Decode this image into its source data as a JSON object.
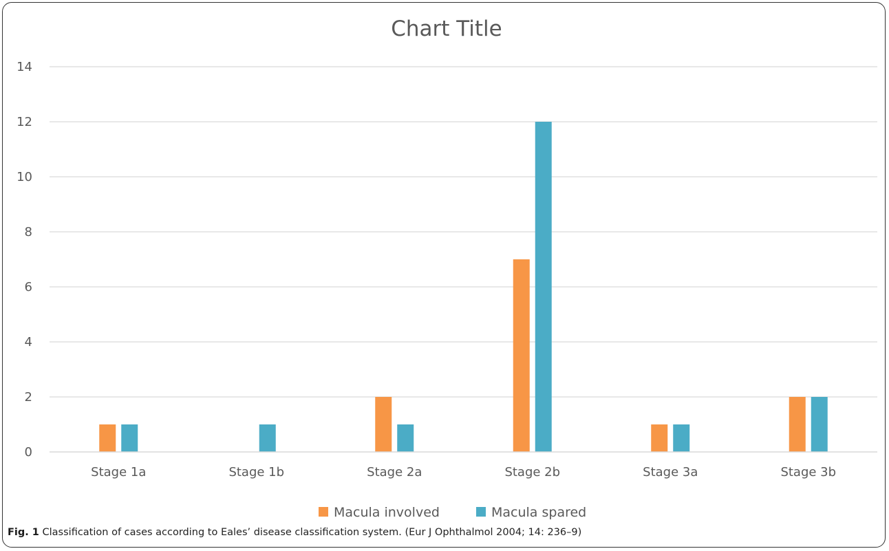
{
  "chart_data": {
    "type": "bar",
    "title": "Chart Title",
    "categories": [
      "Stage 1a",
      "Stage 1b",
      "Stage 2a",
      "Stage 2b",
      "Stage 3a",
      "Stage 3b"
    ],
    "series": [
      {
        "name": "Macula involved",
        "color": "#F79646",
        "values": [
          1,
          0,
          2,
          7,
          1,
          2
        ]
      },
      {
        "name": "Macula spared",
        "color": "#4BACC6",
        "values": [
          1,
          1,
          1,
          12,
          1,
          2
        ]
      }
    ],
    "ylim": [
      0,
      14
    ],
    "yticks": [
      0,
      2,
      4,
      6,
      8,
      10,
      12,
      14
    ],
    "grid": true,
    "legend_position": "bottom"
  },
  "caption": {
    "label": "Fig. 1",
    "text": "Classification of cases according to Eales’ disease classification system. (Eur J Ophthalmol 2004; 14: 236–9)"
  }
}
